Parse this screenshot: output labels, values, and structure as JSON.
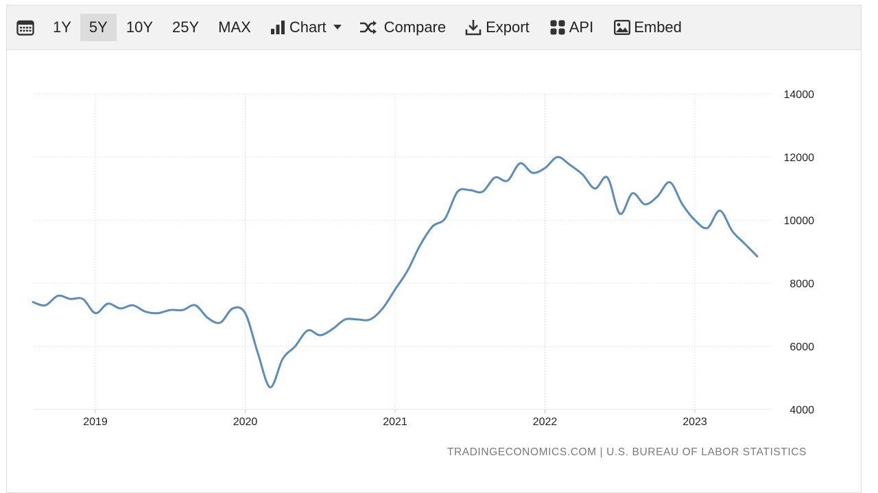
{
  "toolbar": {
    "calendar_icon": "calendar-icon",
    "ranges": [
      "1Y",
      "5Y",
      "10Y",
      "25Y",
      "MAX"
    ],
    "active_range": "5Y",
    "chart_label": "Chart",
    "compare_label": "Compare",
    "export_label": "Export",
    "api_label": "API",
    "embed_label": "Embed"
  },
  "credit": "TRADINGECONOMICS.COM | U.S. BUREAU OF LABOR STATISTICS",
  "colors": {
    "line": "#5b8db8",
    "grid": "#e4e4e4",
    "axis_text": "#222222"
  },
  "chart_data": {
    "type": "line",
    "title": "",
    "xlabel": "",
    "ylabel": "",
    "ylim": [
      4000,
      14000
    ],
    "y_ticks": [
      "4000",
      "6000",
      "8000",
      "10000",
      "12000",
      "14000"
    ],
    "x_ticks": [
      "2019",
      "2020",
      "2021",
      "2022",
      "2023"
    ],
    "grid": true,
    "series": [
      {
        "x": [
          "2018-08",
          "2018-09",
          "2018-10",
          "2018-11",
          "2018-12",
          "2019-01",
          "2019-02",
          "2019-03",
          "2019-04",
          "2019-05",
          "2019-06",
          "2019-07",
          "2019-08",
          "2019-09",
          "2019-10",
          "2019-11",
          "2019-12",
          "2020-01",
          "2020-02",
          "2020-03",
          "2020-04",
          "2020-05",
          "2020-06",
          "2020-07",
          "2020-08",
          "2020-09",
          "2020-10",
          "2020-11",
          "2020-12",
          "2021-01",
          "2021-02",
          "2021-03",
          "2021-04",
          "2021-05",
          "2021-06",
          "2021-07",
          "2021-08",
          "2021-09",
          "2021-10",
          "2021-11",
          "2021-12",
          "2022-01",
          "2022-02",
          "2022-03",
          "2022-04",
          "2022-05",
          "2022-06",
          "2022-07",
          "2022-08",
          "2022-09",
          "2022-10",
          "2022-11",
          "2022-12",
          "2023-01",
          "2023-02",
          "2023-03",
          "2023-04",
          "2023-05",
          "2023-06"
        ],
        "values": [
          7400,
          7300,
          7600,
          7500,
          7500,
          7050,
          7350,
          7200,
          7300,
          7100,
          7050,
          7150,
          7150,
          7300,
          6900,
          6750,
          7200,
          7050,
          5800,
          4700,
          5600,
          6000,
          6500,
          6350,
          6550,
          6850,
          6850,
          6850,
          7200,
          7800,
          8400,
          9200,
          9800,
          10050,
          10900,
          10950,
          10900,
          11350,
          11250,
          11800,
          11500,
          11650,
          12000,
          11750,
          11450,
          11000,
          11350,
          10200,
          10850,
          10500,
          10750,
          11200,
          10500,
          10000,
          9750,
          10300,
          9650,
          9250,
          8850
        ]
      }
    ]
  }
}
